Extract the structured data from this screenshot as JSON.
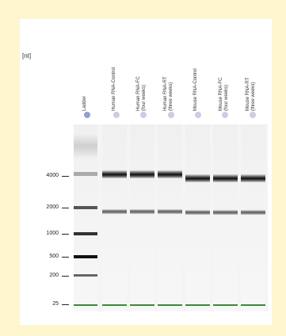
{
  "unit_label": "[nt]",
  "lanes": [
    {
      "label": "Ladder",
      "label2": "",
      "dot_color": "#8fa0d6"
    },
    {
      "label": "Human RNA-Control",
      "label2": "",
      "dot_color": "#c9cde6"
    },
    {
      "label": "Human RNA-FC",
      "label2": "(four weeks)",
      "dot_color": "#c9cde6"
    },
    {
      "label": "Human RNA-RT",
      "label2": "(three weeks)",
      "dot_color": "#c9cde6"
    },
    {
      "label": "Mouse RNA-Control",
      "label2": "",
      "dot_color": "#c9cde6"
    },
    {
      "label": "Mouse RNA-FC",
      "label2": "(four weeks)",
      "dot_color": "#c9cde6"
    },
    {
      "label": "Mouse RNA-RT",
      "label2": "(three weeks)",
      "dot_color": "#c9cde6"
    }
  ],
  "size_markers": [
    "4000",
    "2000",
    "1000",
    "500",
    "200",
    "25"
  ],
  "marker_color": "#3a8a3a"
}
